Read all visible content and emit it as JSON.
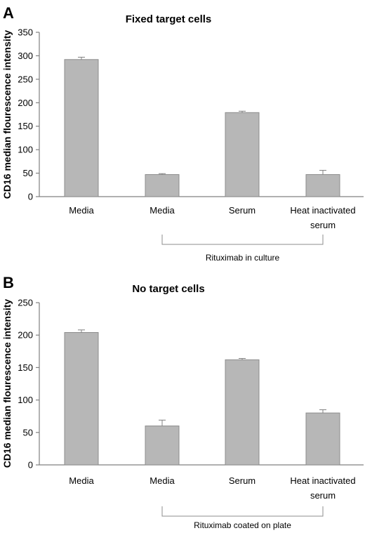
{
  "chart_data": [
    {
      "type": "bar",
      "panel": "A",
      "title": "Fixed target cells",
      "ylabel": "CD16 median flourescence intensity",
      "ylim": [
        0,
        350
      ],
      "yticks": [
        0,
        50,
        100,
        150,
        200,
        250,
        300,
        350
      ],
      "categories": [
        [
          "Media"
        ],
        [
          "Media"
        ],
        [
          "Serum"
        ],
        [
          "Heat inactivated",
          "serum"
        ]
      ],
      "values": [
        292,
        47,
        179,
        47
      ],
      "errors": [
        5,
        2,
        3,
        9
      ],
      "grid": false,
      "group_bracket": {
        "label": "Rituximab in culture",
        "from_category": 1,
        "to_category": 3
      }
    },
    {
      "type": "bar",
      "panel": "B",
      "title": "No target cells",
      "ylabel": "CD16 median flourescence intensity",
      "ylim": [
        0,
        250
      ],
      "yticks": [
        0,
        50,
        100,
        150,
        200,
        250
      ],
      "categories": [
        [
          "Media"
        ],
        [
          "Media"
        ],
        [
          "Serum"
        ],
        [
          "Heat inactivated",
          "serum"
        ]
      ],
      "values": [
        204,
        60,
        162,
        80
      ],
      "errors": [
        4,
        9,
        2,
        5
      ],
      "grid": false,
      "group_bracket": {
        "label": "Rituximab coated on plate",
        "from_category": 1,
        "to_category": 3
      }
    }
  ],
  "colors": {
    "bar_fill": "#b7b7b7",
    "bar_stroke": "#8c8c8c",
    "axis": "#808080"
  }
}
